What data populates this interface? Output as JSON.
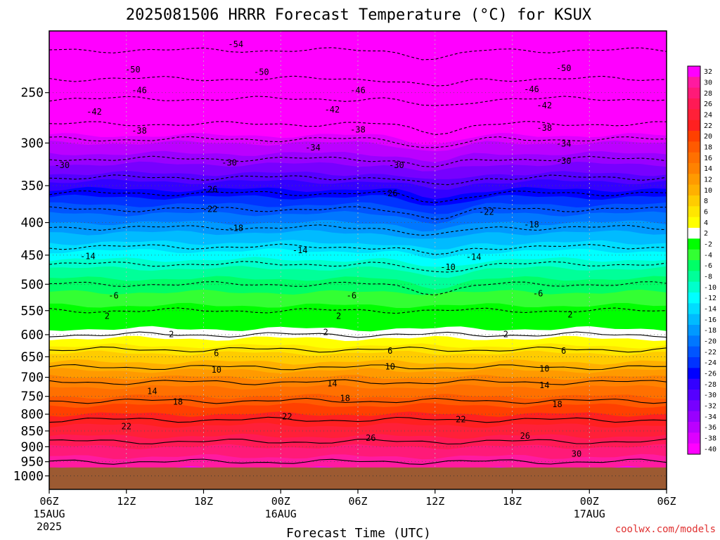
{
  "chart_data": {
    "type": "heatmap",
    "title": "2025081506 HRRR Forecast Temperature (°C) for KSUX",
    "xlabel": "Forecast Time (UTC)",
    "ylabel": "",
    "y_scale": "log",
    "y_inverted": true,
    "y_range": [
      200,
      1050
    ],
    "x_range_hours": [
      0,
      48
    ],
    "y_ticks": [
      250,
      300,
      350,
      400,
      450,
      500,
      550,
      600,
      650,
      700,
      750,
      800,
      850,
      900,
      950,
      1000
    ],
    "x_ticks": [
      {
        "hour": 0,
        "label": "06Z",
        "sub1": "15AUG",
        "sub2": "2025"
      },
      {
        "hour": 6,
        "label": "12Z",
        "sub1": "",
        "sub2": ""
      },
      {
        "hour": 12,
        "label": "18Z",
        "sub1": "",
        "sub2": ""
      },
      {
        "hour": 18,
        "label": "00Z",
        "sub1": "16AUG",
        "sub2": ""
      },
      {
        "hour": 24,
        "label": "06Z",
        "sub1": "",
        "sub2": ""
      },
      {
        "hour": 30,
        "label": "12Z",
        "sub1": "",
        "sub2": ""
      },
      {
        "hour": 36,
        "label": "18Z",
        "sub1": "",
        "sub2": ""
      },
      {
        "hour": 42,
        "label": "00Z",
        "sub1": "17AUG",
        "sub2": ""
      },
      {
        "hour": 48,
        "label": "06Z",
        "sub1": "",
        "sub2": ""
      }
    ],
    "ground_pressure": 970,
    "ground_color": "#9c5a32",
    "colorbar": {
      "labels": [
        "32",
        "30",
        "28",
        "26",
        "24",
        "22",
        "20",
        "18",
        "16",
        "14",
        "12",
        "10",
        "8",
        "6",
        "4",
        "2",
        "-2",
        "-4",
        "-6",
        "-8",
        "-10",
        "-12",
        "-14",
        "-16",
        "-18",
        "-20",
        "-22",
        "-24",
        "-26",
        "-28",
        "-30",
        "-32",
        "-34",
        "-36",
        "-38",
        "-40"
      ],
      "colors": [
        "#ff00ff",
        "#ff1aa0",
        "#ff1a78",
        "#ff1a55",
        "#ff2038",
        "#ff2020",
        "#ff4000",
        "#ff5a00",
        "#ff7000",
        "#ff8200",
        "#ff9a00",
        "#ffb000",
        "#ffcc00",
        "#ffe600",
        "#ffff00",
        "#ffffff",
        "#00ff00",
        "#33ff33",
        "#00ff66",
        "#00ff99",
        "#00ffcc",
        "#00ffff",
        "#00ddff",
        "#00bbff",
        "#0099ff",
        "#0077ff",
        "#0055ff",
        "#0033ff",
        "#0000ff",
        "#3300ff",
        "#5500ff",
        "#7700ff",
        "#9900ff",
        "#bb00ff",
        "#dd00ff",
        "#ff00ff"
      ]
    },
    "contour_profile": {
      "pressure": [
        200,
        230,
        250,
        280,
        300,
        330,
        350,
        375,
        400,
        430,
        450,
        480,
        500,
        530,
        550,
        575,
        600,
        625,
        650,
        675,
        700,
        725,
        750,
        775,
        800,
        850,
        900,
        950,
        1000
      ],
      "temperature": [
        -56,
        -52,
        -47,
        -42,
        -37,
        -32,
        -28,
        -23,
        -19,
        -15,
        -12,
        -8,
        -6,
        -4,
        -2,
        0,
        2,
        5,
        8,
        10,
        13,
        15,
        17,
        19,
        21,
        24,
        27,
        30,
        32
      ]
    },
    "contour_levels": [
      -54,
      -50,
      -46,
      -42,
      -38,
      -34,
      -30,
      -26,
      -22,
      -18,
      -14,
      -10,
      -6,
      -2,
      2,
      6,
      10,
      14,
      18,
      22,
      26,
      30
    ],
    "contour_labels": [
      {
        "text": "-54",
        "hour": 14.5,
        "p": 210
      },
      {
        "text": "-50",
        "hour": 6.5,
        "p": 230
      },
      {
        "text": "-50",
        "hour": 16.5,
        "p": 232
      },
      {
        "text": "-50",
        "hour": 40,
        "p": 229
      },
      {
        "text": "-46",
        "hour": 7,
        "p": 248
      },
      {
        "text": "-46",
        "hour": 24,
        "p": 248
      },
      {
        "text": "-46",
        "hour": 37.5,
        "p": 247
      },
      {
        "text": "-42",
        "hour": 3.5,
        "p": 268
      },
      {
        "text": "-42",
        "hour": 22,
        "p": 266
      },
      {
        "text": "-42",
        "hour": 38.5,
        "p": 262
      },
      {
        "text": "-38",
        "hour": 7,
        "p": 287
      },
      {
        "text": "-38",
        "hour": 24,
        "p": 286
      },
      {
        "text": "-38",
        "hour": 38.5,
        "p": 284
      },
      {
        "text": "-34",
        "hour": 20.5,
        "p": 305
      },
      {
        "text": "-34",
        "hour": 40,
        "p": 301
      },
      {
        "text": "-30",
        "hour": 1,
        "p": 325
      },
      {
        "text": "-30",
        "hour": 14,
        "p": 322
      },
      {
        "text": "-30",
        "hour": 27,
        "p": 325
      },
      {
        "text": "-30",
        "hour": 40,
        "p": 320
      },
      {
        "text": "-26",
        "hour": 12.5,
        "p": 355
      },
      {
        "text": "-26",
        "hour": 26.5,
        "p": 360
      },
      {
        "text": "-22",
        "hour": 12.5,
        "p": 381
      },
      {
        "text": "-22",
        "hour": 34,
        "p": 385
      },
      {
        "text": "-18",
        "hour": 14.5,
        "p": 408
      },
      {
        "text": "-18",
        "hour": 37.5,
        "p": 403
      },
      {
        "text": "-14",
        "hour": 3,
        "p": 452
      },
      {
        "text": "-14",
        "hour": 19.5,
        "p": 442
      },
      {
        "text": "-14",
        "hour": 33,
        "p": 453
      },
      {
        "text": "-10",
        "hour": 31,
        "p": 470
      },
      {
        "text": "-6",
        "hour": 5,
        "p": 521
      },
      {
        "text": "-6",
        "hour": 23.5,
        "p": 521
      },
      {
        "text": "-6",
        "hour": 38,
        "p": 517
      },
      {
        "text": "2",
        "hour": 4.5,
        "p": 561
      },
      {
        "text": "2",
        "hour": 22.5,
        "p": 561
      },
      {
        "text": "2",
        "hour": 40.5,
        "p": 558
      },
      {
        "text": "2",
        "hour": 9.5,
        "p": 599
      },
      {
        "text": "2",
        "hour": 21.5,
        "p": 595
      },
      {
        "text": "2",
        "hour": 35.5,
        "p": 599
      },
      {
        "text": "6",
        "hour": 13,
        "p": 642
      },
      {
        "text": "6",
        "hour": 26.5,
        "p": 636
      },
      {
        "text": "6",
        "hour": 40,
        "p": 636
      },
      {
        "text": "10",
        "hour": 13,
        "p": 681
      },
      {
        "text": "10",
        "hour": 26.5,
        "p": 674
      },
      {
        "text": "10",
        "hour": 38.5,
        "p": 679
      },
      {
        "text": "14",
        "hour": 8,
        "p": 736
      },
      {
        "text": "14",
        "hour": 22,
        "p": 716
      },
      {
        "text": "14",
        "hour": 38.5,
        "p": 721
      },
      {
        "text": "18",
        "hour": 10,
        "p": 765
      },
      {
        "text": "18",
        "hour": 23,
        "p": 755
      },
      {
        "text": "18",
        "hour": 39.5,
        "p": 772
      },
      {
        "text": "22",
        "hour": 6,
        "p": 836
      },
      {
        "text": "22",
        "hour": 18.5,
        "p": 807
      },
      {
        "text": "22",
        "hour": 32,
        "p": 815
      },
      {
        "text": "26",
        "hour": 25,
        "p": 872
      },
      {
        "text": "26",
        "hour": 37,
        "p": 865
      },
      {
        "text": "30",
        "hour": 41,
        "p": 923
      }
    ]
  },
  "footer": {
    "credit": "coolwx.com/models"
  }
}
